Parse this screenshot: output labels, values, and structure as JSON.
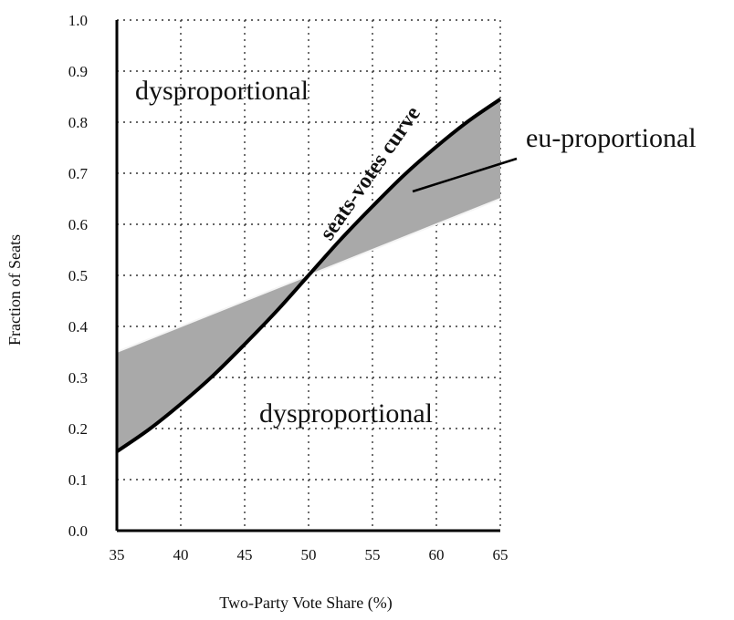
{
  "chart_data": {
    "type": "line",
    "title": "",
    "xlabel": "Two-Party Vote Share (%)",
    "ylabel": "Fraction of Seats",
    "xlim": [
      35,
      65
    ],
    "ylim": [
      0.0,
      1.0
    ],
    "x_ticks": [
      "35",
      "40",
      "45",
      "50",
      "55",
      "60",
      "65"
    ],
    "y_ticks": [
      "0.0",
      "0.1",
      "0.2",
      "0.3",
      "0.4",
      "0.5",
      "0.6",
      "0.7",
      "0.8",
      "0.9",
      "1.0"
    ],
    "grid": true,
    "series": [
      {
        "name": "seats-votes curve",
        "x": [
          35,
          37.5,
          40,
          42.5,
          45,
          47.5,
          50,
          52.5,
          55,
          57.5,
          60,
          62.5,
          65
        ],
        "y": [
          0.155,
          0.198,
          0.248,
          0.303,
          0.365,
          0.43,
          0.5,
          0.57,
          0.635,
          0.697,
          0.752,
          0.802,
          0.845
        ]
      },
      {
        "x": [
          35,
          65
        ],
        "y": [
          0.35,
          0.65
        ]
      }
    ],
    "shaded_region": "between seats-votes curve and proportional line",
    "annotations": {
      "region_upper": "dysproportional",
      "region_lower": "dysproportional",
      "shaded_label": "eu-proportional",
      "curve_label": "seats-votes curve"
    },
    "colors": {
      "curve": "#000000",
      "shade": "#a9a9a9",
      "grid": "#333333"
    }
  }
}
